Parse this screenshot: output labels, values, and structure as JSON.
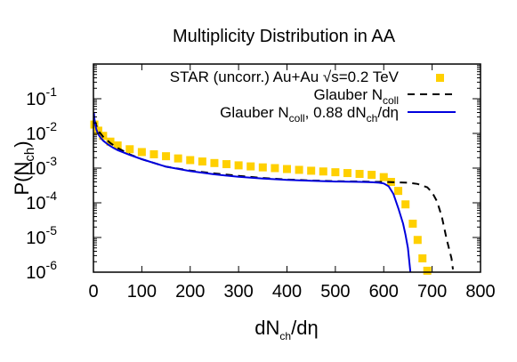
{
  "chart_data": {
    "type": "scatter",
    "title": "Multiplicity Distribution in AA",
    "xlabel": {
      "main": "dN",
      "sub": "ch",
      "rest": "/dη"
    },
    "ylabel": {
      "main": "P(N",
      "sub": "ch",
      "rest": ")"
    },
    "xlim": [
      0,
      800
    ],
    "ylim": [
      1e-06,
      1
    ],
    "yscale": "log",
    "grid": false,
    "legend_position": "top-right",
    "x_ticks": [
      "0",
      "100",
      "200",
      "300",
      "400",
      "500",
      "600",
      "700",
      "800"
    ],
    "y_ticks": [
      {
        "value": 1e-06,
        "base": "10",
        "exp": "-6"
      },
      {
        "value": 1e-05,
        "base": "10",
        "exp": "-5"
      },
      {
        "value": 0.0001,
        "base": "10",
        "exp": "-4"
      },
      {
        "value": 0.001,
        "base": "10",
        "exp": "-3"
      },
      {
        "value": 0.01,
        "base": "10",
        "exp": "-2"
      },
      {
        "value": 0.1,
        "base": "10",
        "exp": "-1"
      }
    ],
    "series": [
      {
        "name": "STAR (uncorr.) Au+Au √s=0.2 TeV",
        "style": "squares",
        "color": "#ffd000",
        "x": [
          2,
          10,
          20,
          35,
          50,
          75,
          100,
          125,
          150,
          175,
          200,
          225,
          250,
          275,
          300,
          325,
          350,
          375,
          400,
          425,
          450,
          475,
          500,
          525,
          550,
          575,
          600,
          615,
          630,
          645,
          660,
          670,
          680,
          690
        ],
        "y": [
          0.018,
          0.012,
          0.0085,
          0.0058,
          0.0045,
          0.0035,
          0.0029,
          0.0025,
          0.0022,
          0.0019,
          0.0017,
          0.00155,
          0.0014,
          0.0013,
          0.0012,
          0.00112,
          0.00105,
          0.001,
          0.00094,
          0.00089,
          0.00084,
          0.0008,
          0.00076,
          0.00072,
          0.00068,
          0.00064,
          0.00055,
          0.0004,
          0.00022,
          9e-05,
          2.5e-05,
          8.5e-06,
          2.5e-06,
          1.1e-06
        ]
      },
      {
        "name": "Glauber N",
        "name_sub": "coll",
        "style": "dashed",
        "color": "#000000",
        "x": [
          2,
          10,
          20,
          35,
          50,
          75,
          100,
          150,
          200,
          250,
          300,
          350,
          400,
          450,
          500,
          550,
          580,
          600,
          620,
          650,
          670,
          690,
          700,
          710,
          720,
          730,
          740,
          743
        ],
        "y": [
          0.024,
          0.012,
          0.008,
          0.0053,
          0.0038,
          0.0025,
          0.0018,
          0.0011,
          0.00085,
          0.0007,
          0.0006,
          0.00052,
          0.00047,
          0.00044,
          0.00042,
          0.00041,
          0.0004,
          0.0004,
          0.00039,
          0.00038,
          0.00035,
          0.00028,
          0.0002,
          0.00011,
          4e-05,
          9e-06,
          2.5e-06,
          1.2e-06
        ]
      },
      {
        "name": "Glauber N",
        "name_sub": "coll",
        "name_rest": ", 0.88 dN",
        "name_sub2": "ch",
        "name_rest2": "/dη",
        "style": "line",
        "color": "#0000dd",
        "x": [
          1,
          3,
          6,
          10,
          15,
          20,
          30,
          40,
          50,
          75,
          100,
          150,
          200,
          250,
          300,
          350,
          400,
          450,
          500,
          550,
          575,
          590,
          600,
          610,
          620,
          630,
          640,
          645,
          650,
          655
        ],
        "y": [
          0.04,
          0.02,
          0.013,
          0.0095,
          0.0075,
          0.0062,
          0.0048,
          0.0039,
          0.0033,
          0.0024,
          0.0018,
          0.0011,
          0.00082,
          0.00066,
          0.00056,
          0.0005,
          0.00046,
          0.00043,
          0.00041,
          0.0004,
          0.00039,
          0.00038,
          0.00036,
          0.0003,
          0.00018,
          7e-05,
          2.5e-05,
          1.2e-05,
          5e-06,
          1e-06
        ]
      }
    ]
  }
}
